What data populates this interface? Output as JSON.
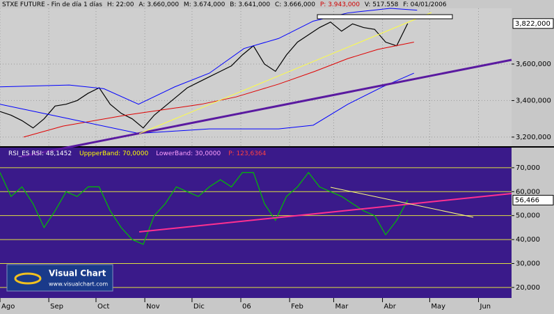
{
  "chart_data": [
    {
      "type": "line",
      "header": {
        "symbol": "STXE FUTURE - Fin de día 1 días",
        "hour": "H: 22:00",
        "open": "A: 3.660,000",
        "high": "M: 3.674,000",
        "low": "B: 3.641,000",
        "close": "C: 3.666,000",
        "pointer": "P: 3.943,000",
        "volume": "V: 517.558",
        "date": "F: 04/01/2006"
      },
      "last_label": "3,822,000",
      "xlim": [
        0,
        325
      ],
      "xticks": [
        {
          "value": 0,
          "label": "Ago"
        },
        {
          "value": 31,
          "label": "Sep"
        },
        {
          "value": 61,
          "label": "Oct"
        },
        {
          "value": 92,
          "label": "Nov"
        },
        {
          "value": 122,
          "label": "Dic"
        },
        {
          "value": 153,
          "label": "06"
        },
        {
          "value": 184,
          "label": "Feb"
        },
        {
          "value": 212,
          "label": "Mar"
        },
        {
          "value": 243,
          "label": "Abr"
        },
        {
          "value": 273,
          "label": "May"
        },
        {
          "value": 304,
          "label": "Jun"
        }
      ],
      "ylim": [
        3150,
        3905
      ],
      "yticks": [
        {
          "value": 3200,
          "label": "3,200,000"
        },
        {
          "value": 3400,
          "label": "3,400,000"
        },
        {
          "value": 3600,
          "label": "3,600,000"
        }
      ],
      "grid": true,
      "series": [
        {
          "color": "#000000",
          "x": [
            0,
            7,
            14,
            21,
            28,
            35,
            42,
            49,
            56,
            63,
            70,
            77,
            84,
            91,
            98,
            105,
            112,
            119,
            126,
            133,
            140,
            147,
            154,
            161,
            168,
            175,
            182,
            189,
            196,
            203,
            210,
            217,
            224,
            231,
            238,
            245,
            252,
            259
          ],
          "values": [
            3340,
            3320,
            3290,
            3250,
            3300,
            3370,
            3380,
            3400,
            3440,
            3470,
            3380,
            3330,
            3300,
            3250,
            3320,
            3370,
            3420,
            3470,
            3500,
            3530,
            3560,
            3590,
            3650,
            3700,
            3600,
            3560,
            3650,
            3720,
            3760,
            3800,
            3830,
            3780,
            3820,
            3800,
            3790,
            3720,
            3700,
            3822
          ]
        },
        {
          "color": "#e00000",
          "x": [
            15,
            40,
            80,
            128,
            150,
            177,
            200,
            221,
            240,
            263
          ],
          "values": [
            3200,
            3260,
            3320,
            3380,
            3420,
            3490,
            3560,
            3630,
            3680,
            3720
          ]
        },
        {
          "color": "#0000ff",
          "x": [
            0,
            44,
            66,
            88,
            111,
            133,
            155,
            177,
            199,
            221,
            248,
            265
          ],
          "values": [
            3475,
            3485,
            3465,
            3380,
            3475,
            3550,
            3685,
            3740,
            3835,
            3880,
            3905,
            3895
          ]
        },
        {
          "color": "#0000ff",
          "x": [
            0,
            44,
            88,
            133,
            177,
            199,
            221,
            243,
            263
          ],
          "values": [
            3380,
            3300,
            3220,
            3245,
            3245,
            3265,
            3380,
            3475,
            3550
          ]
        }
      ]
    },
    {
      "type": "line",
      "header": {
        "name": "RSI_ES RSI: 48,1452",
        "upper": "UppperBand: 70,0000",
        "lower": "LowerBand: 30,0000",
        "pointer": "P: 123,6364"
      },
      "last_label": "56,466",
      "xlim": [
        0,
        325
      ],
      "ylim": [
        15.6,
        78.4
      ],
      "yticks": [
        {
          "value": 70,
          "label": "70,000"
        },
        {
          "value": 60,
          "label": "60,000"
        },
        {
          "value": 50,
          "label": "50,000"
        },
        {
          "value": 40,
          "label": "40,000"
        },
        {
          "value": 30,
          "label": "30,000"
        },
        {
          "value": 20,
          "label": "20,000"
        }
      ],
      "grid": true,
      "series": [
        {
          "color": "#00c000",
          "x": [
            0,
            7,
            14,
            21,
            28,
            35,
            42,
            49,
            56,
            63,
            70,
            77,
            84,
            91,
            98,
            105,
            112,
            119,
            126,
            133,
            140,
            147,
            154,
            161,
            168,
            175,
            182,
            189,
            196,
            203,
            210,
            217,
            224,
            231,
            238,
            245,
            252,
            259
          ],
          "values": [
            68,
            58,
            62,
            55,
            45,
            52,
            60,
            58,
            62,
            62,
            52,
            45,
            40,
            38,
            50,
            55,
            62,
            60,
            58,
            62,
            65,
            62,
            68,
            68,
            55,
            48,
            58,
            62,
            68,
            62,
            60,
            58,
            55,
            52,
            50,
            42,
            48,
            56.466
          ]
        }
      ]
    }
  ],
  "logo": {
    "title": "Visual Chart",
    "url": "www.visualchart.com"
  }
}
